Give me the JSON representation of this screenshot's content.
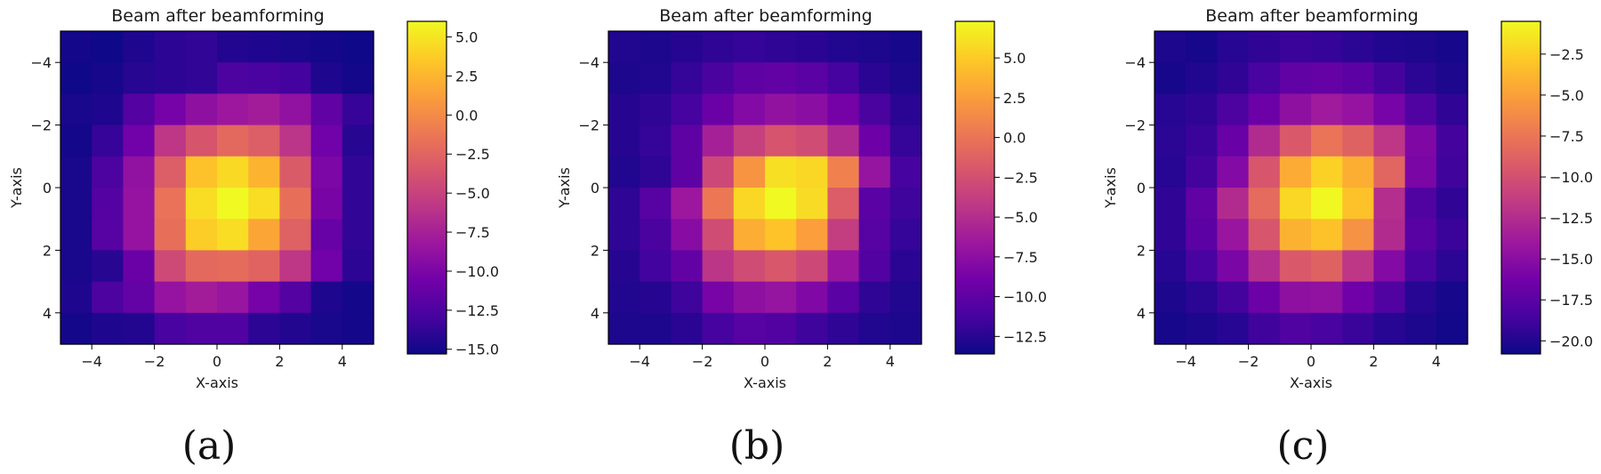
{
  "colors": {
    "colormap": "plasma",
    "frame": "#000000"
  },
  "chart_data": [
    {
      "type": "heatmap",
      "title": "Beam after beamforming",
      "xlabel": "X-axis",
      "ylabel": "Y-axis",
      "caption": "(a)",
      "xlim": [
        -5,
        5
      ],
      "ylim": [
        5,
        -5
      ],
      "x_ticks": [
        -4,
        -2,
        0,
        2,
        4
      ],
      "y_ticks": [
        -4,
        -2,
        0,
        2,
        4
      ],
      "grid": false,
      "y_centers": [
        -4.5,
        -3.5,
        -2.5,
        -1.5,
        -0.5,
        0.5,
        1.5,
        2.5,
        3.5,
        4.5
      ],
      "x_centers": [
        -4.5,
        -3.5,
        -2.5,
        -1.5,
        -0.5,
        0.5,
        1.5,
        2.5,
        3.5,
        4.5
      ],
      "values": [
        [
          -15.0,
          -15.2,
          -14.6,
          -14.0,
          -13.8,
          -14.4,
          -14.6,
          -14.8,
          -15.0,
          -15.2
        ],
        [
          -15.2,
          -14.9,
          -14.2,
          -14.0,
          -13.8,
          -12.6,
          -12.7,
          -13.0,
          -14.6,
          -15.0
        ],
        [
          -14.8,
          -14.6,
          -12.2,
          -10.4,
          -9.0,
          -8.2,
          -7.8,
          -8.8,
          -11.5,
          -13.6
        ],
        [
          -15.0,
          -13.6,
          -10.6,
          -5.8,
          -3.6,
          -2.2,
          -3.0,
          -6.0,
          -10.6,
          -14.2
        ],
        [
          -14.8,
          -12.6,
          -8.8,
          -3.0,
          3.2,
          4.4,
          2.4,
          -3.2,
          -10.0,
          -13.8
        ],
        [
          -14.8,
          -12.2,
          -8.6,
          -1.6,
          4.6,
          6.0,
          4.6,
          -1.8,
          -10.2,
          -13.8
        ],
        [
          -14.8,
          -12.0,
          -8.6,
          -1.8,
          3.8,
          4.6,
          1.6,
          -2.8,
          -11.2,
          -13.8
        ],
        [
          -14.8,
          -14.2,
          -11.0,
          -4.4,
          -2.2,
          -2.0,
          -2.6,
          -5.8,
          -10.6,
          -14.0
        ],
        [
          -14.6,
          -12.6,
          -11.4,
          -8.6,
          -7.8,
          -8.4,
          -10.4,
          -12.2,
          -14.6,
          -15.0
        ],
        [
          -15.0,
          -14.6,
          -14.4,
          -12.8,
          -12.4,
          -12.4,
          -14.0,
          -14.4,
          -14.8,
          -15.0
        ]
      ],
      "color_range": [
        -15.3,
        6.0
      ],
      "colorbar_ticks": [
        -15.0,
        -12.5,
        -10.0,
        -7.5,
        -5.0,
        -2.5,
        0.0,
        2.5,
        5.0
      ],
      "colorbar_labels": [
        "−15.0",
        "−12.5",
        "−10.0",
        "−7.5",
        "−5.0",
        "−2.5",
        "0.0",
        "2.5",
        "5.0"
      ]
    },
    {
      "type": "heatmap",
      "title": "Beam after beamforming",
      "xlabel": "X-axis",
      "ylabel": "Y-axis",
      "caption": "(b)",
      "xlim": [
        -5,
        5
      ],
      "ylim": [
        5,
        -5
      ],
      "x_ticks": [
        -4,
        -2,
        0,
        2,
        4
      ],
      "y_ticks": [
        -4,
        -2,
        0,
        2,
        4
      ],
      "grid": false,
      "y_centers": [
        -4.5,
        -3.5,
        -2.5,
        -1.5,
        -0.5,
        0.5,
        1.5,
        2.5,
        3.5,
        4.5
      ],
      "x_centers": [
        -4.5,
        -3.5,
        -2.5,
        -1.5,
        -0.5,
        0.5,
        1.5,
        2.5,
        3.5,
        4.5
      ],
      "values": [
        [
          -12.8,
          -13.0,
          -12.6,
          -12.2,
          -12.0,
          -12.2,
          -12.4,
          -12.8,
          -13.0,
          -13.2
        ],
        [
          -13.0,
          -12.8,
          -12.0,
          -11.0,
          -10.0,
          -9.8,
          -10.2,
          -11.2,
          -12.4,
          -13.0
        ],
        [
          -12.6,
          -12.2,
          -11.2,
          -9.4,
          -8.0,
          -7.2,
          -7.6,
          -8.8,
          -11.0,
          -12.4
        ],
        [
          -12.6,
          -12.0,
          -10.0,
          -6.0,
          -3.6,
          -2.2,
          -2.8,
          -5.2,
          -9.2,
          -12.0
        ],
        [
          -12.8,
          -12.2,
          -10.0,
          -3.0,
          2.0,
          6.0,
          5.6,
          0.8,
          -7.0,
          -11.2
        ],
        [
          -12.2,
          -10.4,
          -6.6,
          0.2,
          5.6,
          7.4,
          5.8,
          -1.6,
          -10.2,
          -11.6
        ],
        [
          -12.2,
          -11.0,
          -7.8,
          -2.8,
          3.4,
          4.6,
          2.6,
          -3.8,
          -10.4,
          -12.0
        ],
        [
          -12.6,
          -11.4,
          -9.8,
          -4.4,
          -2.8,
          -2.0,
          -3.0,
          -6.8,
          -10.6,
          -12.4
        ],
        [
          -12.8,
          -12.6,
          -11.6,
          -8.6,
          -7.4,
          -7.0,
          -8.2,
          -10.2,
          -12.2,
          -12.8
        ],
        [
          -13.0,
          -13.0,
          -12.4,
          -11.2,
          -10.4,
          -10.6,
          -11.6,
          -12.2,
          -12.8,
          -13.0
        ]
      ],
      "color_range": [
        -13.6,
        7.3
      ],
      "colorbar_ticks": [
        -12.5,
        -10.0,
        -7.5,
        -5.0,
        -2.5,
        0.0,
        2.5,
        5.0
      ],
      "colorbar_labels": [
        "−12.5",
        "−10.0",
        "−7.5",
        "−5.0",
        "−2.5",
        "0.0",
        "2.5",
        "5.0"
      ]
    },
    {
      "type": "heatmap",
      "title": "Beam after beamforming",
      "xlabel": "X-axis",
      "ylabel": "Y-axis",
      "caption": "(c)",
      "xlim": [
        -5,
        5
      ],
      "ylim": [
        5,
        -5
      ],
      "x_ticks": [
        -4,
        -2,
        0,
        2,
        4
      ],
      "y_ticks": [
        -4,
        -2,
        0,
        2,
        4
      ],
      "grid": false,
      "y_centers": [
        -4.5,
        -3.5,
        -2.5,
        -1.5,
        -0.5,
        0.5,
        1.5,
        2.5,
        3.5,
        4.5
      ],
      "x_centers": [
        -4.5,
        -3.5,
        -2.5,
        -1.5,
        -0.5,
        0.5,
        1.5,
        2.5,
        3.5,
        4.5
      ],
      "values": [
        [
          -20.2,
          -20.4,
          -19.8,
          -19.4,
          -19.0,
          -19.2,
          -19.6,
          -20.0,
          -20.2,
          -20.4
        ],
        [
          -20.4,
          -20.0,
          -19.4,
          -18.4,
          -17.2,
          -17.0,
          -17.4,
          -18.6,
          -19.6,
          -20.2
        ],
        [
          -19.8,
          -19.4,
          -18.2,
          -16.6,
          -14.8,
          -13.8,
          -14.4,
          -16.0,
          -18.0,
          -19.4
        ],
        [
          -19.6,
          -19.0,
          -16.8,
          -12.6,
          -9.4,
          -7.6,
          -8.8,
          -11.8,
          -15.6,
          -18.6
        ],
        [
          -19.8,
          -18.6,
          -15.4,
          -9.6,
          -4.4,
          -2.4,
          -4.2,
          -8.6,
          -15.8,
          -18.8
        ],
        [
          -19.4,
          -17.2,
          -12.6,
          -8.2,
          -2.2,
          -0.6,
          -3.2,
          -12.4,
          -18.0,
          -19.4
        ],
        [
          -19.4,
          -17.4,
          -14.2,
          -9.6,
          -4.0,
          -3.2,
          -5.8,
          -12.6,
          -17.6,
          -19.0
        ],
        [
          -19.8,
          -18.4,
          -15.8,
          -12.4,
          -9.4,
          -8.8,
          -11.8,
          -15.4,
          -18.4,
          -19.6
        ],
        [
          -20.2,
          -19.6,
          -18.6,
          -16.6,
          -14.8,
          -14.6,
          -16.4,
          -18.0,
          -19.8,
          -20.4
        ],
        [
          -20.4,
          -20.2,
          -19.8,
          -18.8,
          -18.0,
          -18.4,
          -19.0,
          -19.8,
          -20.2,
          -20.6
        ]
      ],
      "color_range": [
        -20.8,
        -0.5
      ],
      "colorbar_ticks": [
        -20.0,
        -17.5,
        -15.0,
        -12.5,
        -10.0,
        -7.5,
        -5.0,
        -2.5
      ],
      "colorbar_labels": [
        "−20.0",
        "−17.5",
        "−15.0",
        "−12.5",
        "−10.0",
        "−7.5",
        "−5.0",
        "−2.5"
      ]
    }
  ]
}
